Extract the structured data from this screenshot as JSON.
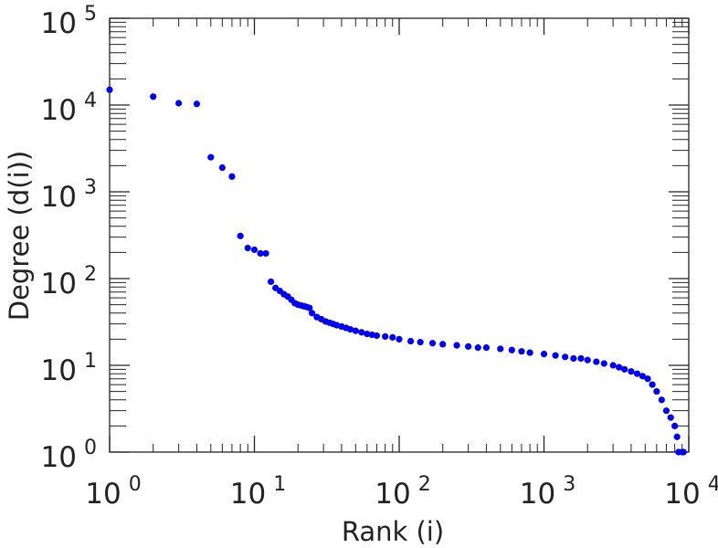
{
  "chart_data": {
    "type": "scatter",
    "xlabel": "Rank (i)",
    "ylabel": "Degree (d(i))",
    "x_scale": "log",
    "y_scale": "log",
    "xlim": [
      1,
      10000
    ],
    "ylim": [
      1,
      100000
    ],
    "x_ticks": [
      {
        "value": 1,
        "base": "10",
        "exp": "0"
      },
      {
        "value": 10,
        "base": "10",
        "exp": "1"
      },
      {
        "value": 100,
        "base": "10",
        "exp": "2"
      },
      {
        "value": 1000,
        "base": "10",
        "exp": "3"
      },
      {
        "value": 10000,
        "base": "10",
        "exp": "4"
      }
    ],
    "y_ticks": [
      {
        "value": 1,
        "base": "10",
        "exp": "0"
      },
      {
        "value": 10,
        "base": "10",
        "exp": "1"
      },
      {
        "value": 100,
        "base": "10",
        "exp": "2"
      },
      {
        "value": 1000,
        "base": "10",
        "exp": "3"
      },
      {
        "value": 10000,
        "base": "10",
        "exp": "4"
      },
      {
        "value": 100000,
        "base": "10",
        "exp": "5"
      }
    ],
    "grid": false,
    "colors": {
      "points": "#0000ee",
      "axes": "#222222"
    },
    "points": [
      [
        1,
        15000
      ],
      [
        2,
        12500
      ],
      [
        3,
        10500
      ],
      [
        4,
        10300
      ],
      [
        5,
        2500
      ],
      [
        6,
        1900
      ],
      [
        7,
        1500
      ],
      [
        8,
        310
      ],
      [
        9,
        225
      ],
      [
        10,
        215
      ],
      [
        11,
        195
      ],
      [
        12,
        195
      ],
      [
        13,
        92
      ],
      [
        14,
        78
      ],
      [
        15,
        72
      ],
      [
        16,
        66
      ],
      [
        17,
        62
      ],
      [
        18,
        57
      ],
      [
        19,
        52
      ],
      [
        20,
        50
      ],
      [
        21,
        49
      ],
      [
        22,
        48
      ],
      [
        23,
        47
      ],
      [
        24,
        46
      ],
      [
        25,
        40
      ],
      [
        27,
        36
      ],
      [
        29,
        34
      ],
      [
        31,
        32
      ],
      [
        33,
        31
      ],
      [
        35,
        30
      ],
      [
        37,
        29
      ],
      [
        40,
        28
      ],
      [
        43,
        27
      ],
      [
        46,
        26
      ],
      [
        50,
        25
      ],
      [
        55,
        24
      ],
      [
        60,
        23
      ],
      [
        65,
        22.5
      ],
      [
        70,
        22
      ],
      [
        80,
        21.5
      ],
      [
        90,
        21
      ],
      [
        100,
        20
      ],
      [
        120,
        19
      ],
      [
        140,
        18.5
      ],
      [
        170,
        18
      ],
      [
        200,
        17.5
      ],
      [
        250,
        17
      ],
      [
        300,
        16.5
      ],
      [
        350,
        16
      ],
      [
        400,
        16
      ],
      [
        500,
        15.5
      ],
      [
        600,
        15
      ],
      [
        700,
        14.5
      ],
      [
        800,
        14
      ],
      [
        1000,
        13.5
      ],
      [
        1200,
        13
      ],
      [
        1400,
        12.5
      ],
      [
        1600,
        12
      ],
      [
        1800,
        12
      ],
      [
        2000,
        11.5
      ],
      [
        2300,
        11
      ],
      [
        2600,
        10.5
      ],
      [
        3000,
        10
      ],
      [
        3300,
        9.5
      ],
      [
        3600,
        9
      ],
      [
        4000,
        8.5
      ],
      [
        4400,
        8
      ],
      [
        4800,
        7.5
      ],
      [
        5200,
        7
      ],
      [
        5600,
        6
      ],
      [
        6000,
        5
      ],
      [
        6500,
        4
      ],
      [
        7000,
        3
      ],
      [
        7500,
        2.5
      ],
      [
        8000,
        2
      ],
      [
        8300,
        1.5
      ],
      [
        8500,
        1
      ],
      [
        9000,
        1
      ],
      [
        9200,
        1
      ]
    ]
  }
}
